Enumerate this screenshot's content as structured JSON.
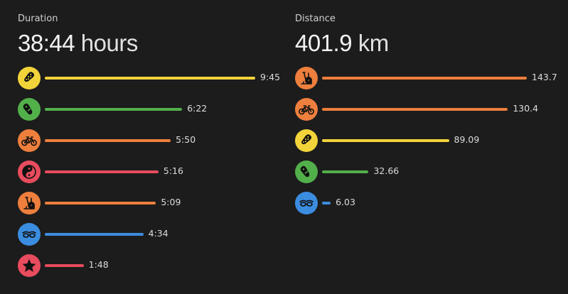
{
  "duration": {
    "label": "Duration",
    "total_value": "38:44",
    "total_unit": "hours",
    "items": [
      {
        "icon": "running-shoe-icon",
        "color": "#f2d33a",
        "value": "9:45",
        "fraction": 1.0
      },
      {
        "icon": "walking-shoe-icon",
        "color": "#52b04b",
        "value": "6:22",
        "fraction": 0.6527
      },
      {
        "icon": "bicycle-icon",
        "color": "#ee7f3d",
        "value": "5:50",
        "fraction": 0.5983
      },
      {
        "icon": "yin-yang-icon",
        "color": "#e84c5e",
        "value": "5:16",
        "fraction": 0.5402
      },
      {
        "icon": "stationary-bike-icon",
        "color": "#ee7f3d",
        "value": "5:09",
        "fraction": 0.5282
      },
      {
        "icon": "swimming-goggles-icon",
        "color": "#3b8de0",
        "value": "4:34",
        "fraction": 0.4684
      },
      {
        "icon": "star-icon",
        "color": "#e84c5e",
        "value": "1:48",
        "fraction": 0.1846
      }
    ]
  },
  "distance": {
    "label": "Distance",
    "total_value": "401.9",
    "total_unit": "km",
    "items": [
      {
        "icon": "stationary-bike-icon",
        "color": "#ee7f3d",
        "value": "143.7",
        "fraction": 1.0
      },
      {
        "icon": "bicycle-icon",
        "color": "#ee7f3d",
        "value": "130.4",
        "fraction": 0.9074
      },
      {
        "icon": "running-shoe-icon",
        "color": "#f2d33a",
        "value": "89.09",
        "fraction": 0.62
      },
      {
        "icon": "walking-shoe-icon",
        "color": "#52b04b",
        "value": "32.66",
        "fraction": 0.2273
      },
      {
        "icon": "swimming-goggles-icon",
        "color": "#3b8de0",
        "value": "6.03",
        "fraction": 0.042
      }
    ]
  }
}
